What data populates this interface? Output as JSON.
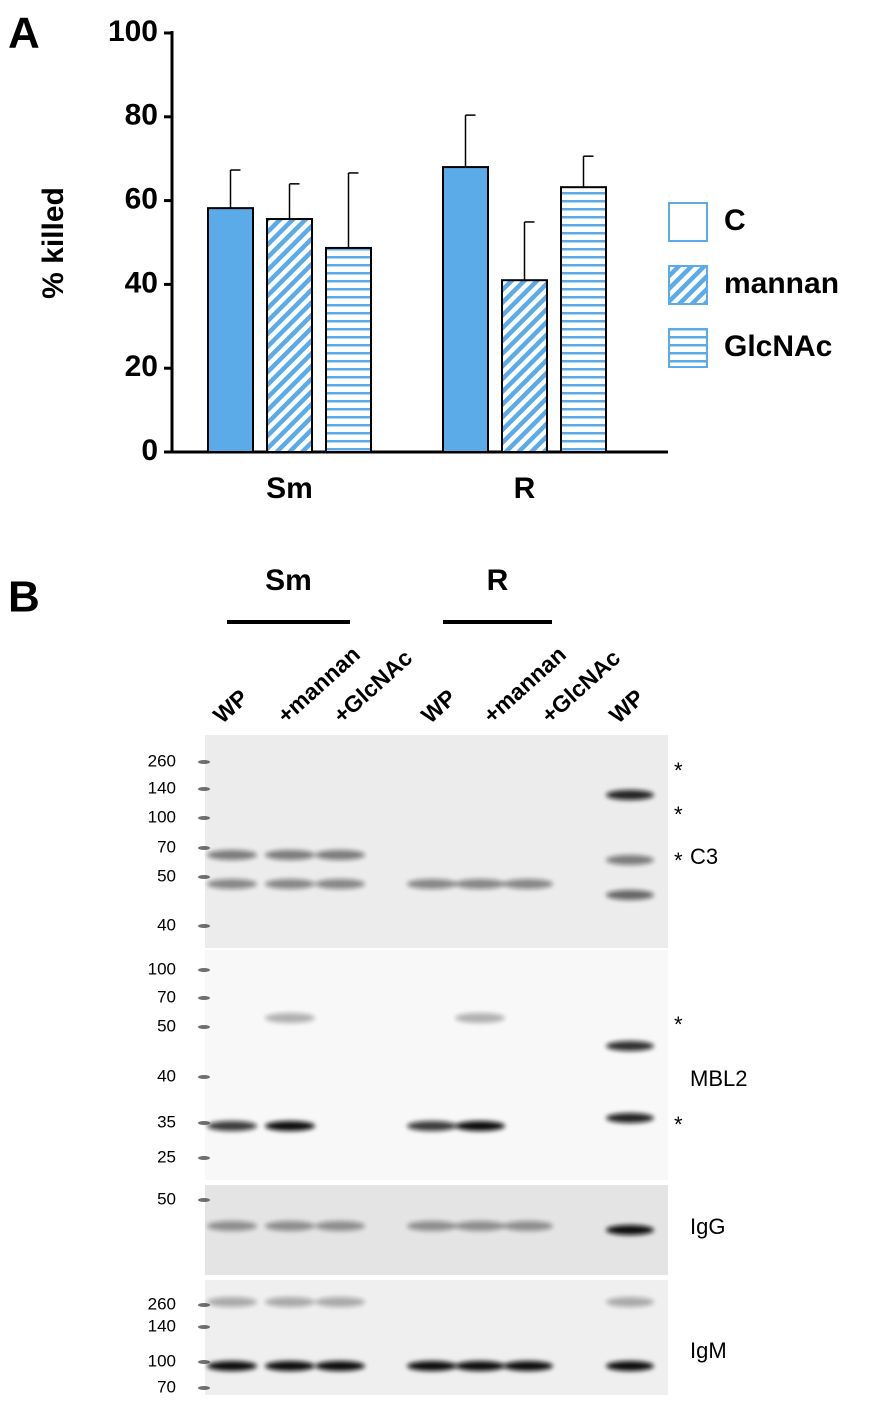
{
  "panels": [
    "A",
    "B"
  ],
  "chart_data": {
    "type": "bar",
    "ylabel": "% killed",
    "categories": [
      "Sm",
      "R"
    ],
    "series": [
      {
        "name": "C",
        "color": "#5aabe8",
        "pattern": "solid",
        "values": [
          58.2,
          68.0
        ],
        "errors": [
          9.1,
          12.4
        ]
      },
      {
        "name": "mannan",
        "color": "#5aabe8",
        "pattern": "diagonal",
        "values": [
          55.6,
          41.0
        ],
        "errors": [
          8.4,
          13.9
        ]
      },
      {
        "name": "GlcNAc",
        "color": "#5aabe8",
        "pattern": "horizontal",
        "values": [
          48.7,
          63.2
        ],
        "errors": [
          17.9,
          7.4
        ]
      }
    ],
    "ylim": [
      0,
      100
    ],
    "yticks": [
      0,
      20,
      40,
      60,
      80,
      100
    ],
    "legend": "right"
  },
  "blot": {
    "groups": [
      "Sm",
      "R"
    ],
    "lanes": [
      "WP",
      "+mannan",
      "+GlcNAc",
      "WP",
      "+mannan",
      "+GlcNAc",
      "WP"
    ],
    "panels": [
      {
        "label": "C3",
        "markers": [
          260,
          140,
          100,
          70,
          50,
          40
        ],
        "stars": [
          "*",
          "*",
          "*"
        ]
      },
      {
        "label": "MBL2",
        "markers": [
          100,
          70,
          50,
          40,
          35,
          25
        ],
        "stars": [
          "*",
          "*"
        ]
      },
      {
        "label": "IgG",
        "markers": [
          50
        ],
        "stars": []
      },
      {
        "label": "IgM",
        "markers": [
          260,
          140,
          100,
          70
        ],
        "stars": []
      }
    ]
  }
}
